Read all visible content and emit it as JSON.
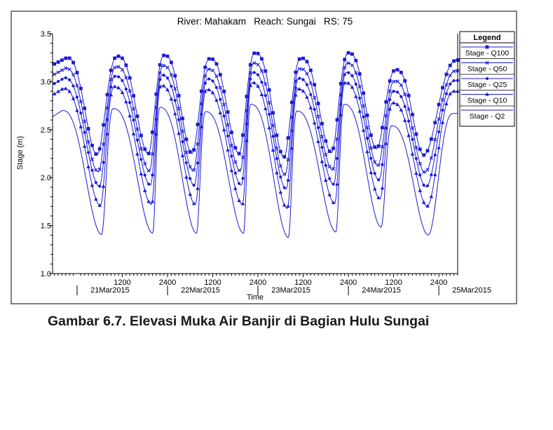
{
  "caption": "Gambar 6.7. Elevasi Muka Air Banjir di Bagian Hulu Sungai",
  "chart_data": {
    "type": "line",
    "title": "River: Mahakam   Reach: Sungai   RS: 75",
    "ylabel": "Stage (m)",
    "xlabel": "Time",
    "ylim": [
      1.0,
      3.5
    ],
    "yticks": [
      "1.0",
      "1.5",
      "2.0",
      "2.5",
      "3.0",
      "3.5"
    ],
    "x_unit": "hours from 21Mar2015 0000",
    "xlim": [
      -6.5,
      101
    ],
    "xticks": [
      {
        "x": 12,
        "label": "1200"
      },
      {
        "x": 24,
        "label": "2400"
      },
      {
        "x": 36,
        "label": "1200"
      },
      {
        "x": 48,
        "label": "2400"
      },
      {
        "x": 60,
        "label": "1200"
      },
      {
        "x": 72,
        "label": "2400"
      },
      {
        "x": 84,
        "label": "1200"
      },
      {
        "x": 96,
        "label": "2400"
      }
    ],
    "dates": [
      {
        "x": 0,
        "label": "21Mar2015"
      },
      {
        "x": 24,
        "label": "22Mar2015"
      },
      {
        "x": 48,
        "label": "23Mar2015"
      },
      {
        "x": 72,
        "label": "24Mar2015"
      },
      {
        "x": 96,
        "label": "25Mar2015"
      }
    ],
    "legend": {
      "title": "Legend",
      "position": "top-right"
    },
    "series": [
      {
        "name": "Stage - Q100",
        "marker": "square",
        "high": 3.25,
        "low": 2.25,
        "peak_shift": 0.0,
        "trough_shift": 0.0
      },
      {
        "name": "Stage - Q50",
        "marker": "x",
        "high": 3.14,
        "low": 2.07,
        "peak_shift": -0.3,
        "trough_shift": 0.3
      },
      {
        "name": "Stage - Q25",
        "marker": "dot",
        "high": 3.04,
        "low": 1.92,
        "peak_shift": -0.6,
        "trough_shift": 0.6
      },
      {
        "name": "Stage - Q10",
        "marker": "triangle",
        "high": 2.93,
        "low": 1.72,
        "peak_shift": -0.9,
        "trough_shift": 0.9
      },
      {
        "name": "Stage - Q2",
        "marker": "none",
        "high": 2.7,
        "low": 1.42,
        "peak_shift": -1.2,
        "trough_shift": 1.2
      }
    ],
    "cycles": [
      {
        "t": -6.5,
        "type": "peak",
        "scale": 0.85
      },
      {
        "t": -2.7,
        "type": "peak",
        "scale": 1.0
      },
      {
        "t": 5.3,
        "type": "trough",
        "scale": 1.02
      },
      {
        "t": 10.8,
        "type": "peak",
        "scale": 1.03
      },
      {
        "t": 18.9,
        "type": "trough",
        "scale": 1.0
      },
      {
        "t": 23.2,
        "type": "peak",
        "scale": 1.05
      },
      {
        "t": 30.5,
        "type": "trough",
        "scale": 1.0
      },
      {
        "t": 35.3,
        "type": "peak",
        "scale": 0.98
      },
      {
        "t": 43.0,
        "type": "trough",
        "scale": 1.0
      },
      {
        "t": 47.3,
        "type": "peak",
        "scale": 1.1
      },
      {
        "t": 54.9,
        "type": "trough",
        "scale": 1.07
      },
      {
        "t": 59.5,
        "type": "peak",
        "scale": 0.99
      },
      {
        "t": 67.5,
        "type": "trough",
        "scale": 0.98
      },
      {
        "t": 72.1,
        "type": "peak",
        "scale": 1.1
      },
      {
        "t": 79.5,
        "type": "trough",
        "scale": 0.9
      },
      {
        "t": 84.7,
        "type": "peak",
        "scale": 0.75
      },
      {
        "t": 92.0,
        "type": "trough",
        "scale": 1.03
      },
      {
        "t": 101.0,
        "type": "peak",
        "scale": 0.95
      }
    ],
    "grid": false
  }
}
